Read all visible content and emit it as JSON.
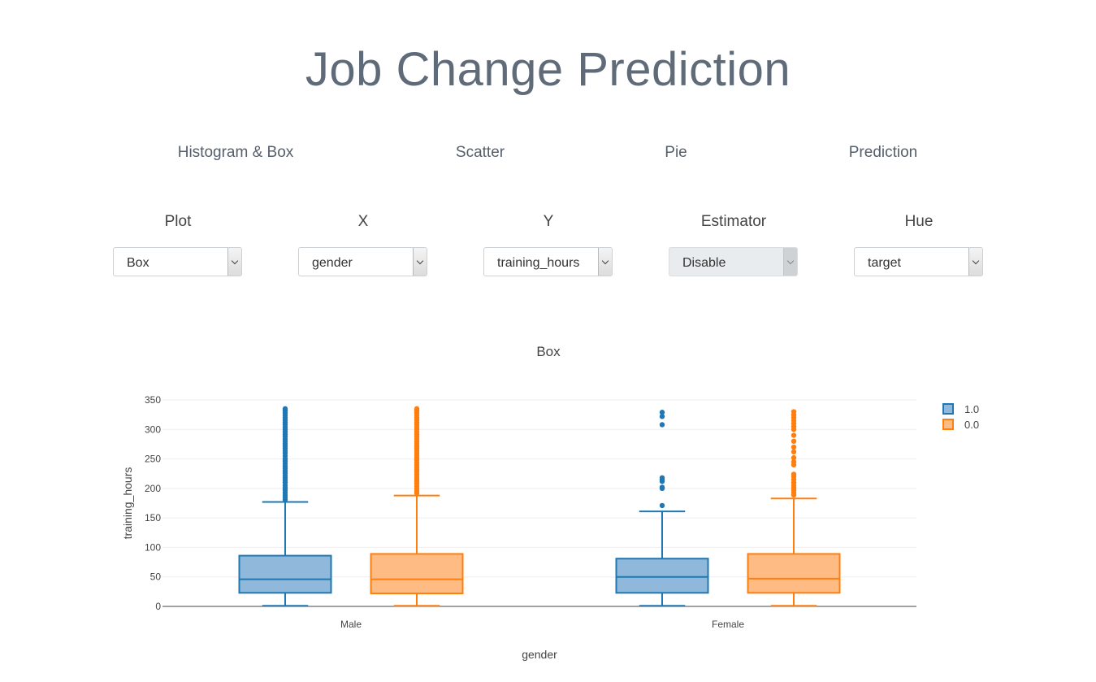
{
  "app": {
    "title": "Job Change Prediction"
  },
  "tabs": [
    {
      "label": "Histogram & Box"
    },
    {
      "label": "Scatter"
    },
    {
      "label": "Pie"
    },
    {
      "label": "Prediction"
    }
  ],
  "controls": {
    "plot": {
      "label": "Plot",
      "value": "Box"
    },
    "x": {
      "label": "X",
      "value": "gender"
    },
    "y": {
      "label": "Y",
      "value": "training_hours"
    },
    "estimator": {
      "label": "Estimator",
      "value": "Disable",
      "disabled": true
    },
    "hue": {
      "label": "Hue",
      "value": "target"
    }
  },
  "chart_data": {
    "type": "box",
    "title": "Box",
    "xlabel": "gender",
    "ylabel": "training_hours",
    "ylim": [
      0,
      350
    ],
    "yticks": [
      0,
      50,
      100,
      150,
      200,
      250,
      300,
      350
    ],
    "categories": [
      "Male",
      "Female"
    ],
    "legend": {
      "position": "top-right"
    },
    "grid": true,
    "series": [
      {
        "name": "1.0",
        "color": "#1f77b4",
        "fill": "#8fb8da",
        "boxes": [
          {
            "category": "Male",
            "min": 1,
            "q1": 23,
            "median": 46,
            "q3": 86,
            "max": 177,
            "outliers": [
              181,
              185,
              189,
              193,
              197,
              201,
              205,
              210,
              214,
              218,
              222,
              226,
              230,
              234,
              238,
              242,
              246,
              250,
              255,
              260,
              264,
              268,
              272,
              276,
              280,
              284,
              288,
              292,
              296,
              300,
              304,
              308,
              312,
              316,
              320,
              324,
              328,
              332,
              335
            ]
          },
          {
            "category": "Female",
            "min": 1,
            "q1": 23,
            "median": 50,
            "q3": 81,
            "max": 161,
            "outliers": [
              171,
              200,
              202,
              212,
              215,
              218,
              308,
              322,
              329
            ]
          }
        ]
      },
      {
        "name": "0.0",
        "color": "#ff7f0e",
        "fill": "#ffbb84",
        "boxes": [
          {
            "category": "Male",
            "min": 1,
            "q1": 22,
            "median": 46,
            "q3": 89,
            "max": 188,
            "outliers": [
              192,
              196,
              200,
              204,
              208,
              212,
              216,
              220,
              224,
              228,
              232,
              236,
              240,
              244,
              248,
              252,
              256,
              260,
              264,
              268,
              272,
              276,
              280,
              284,
              288,
              292,
              296,
              300,
              304,
              308,
              312,
              316,
              320,
              324,
              328,
              332,
              335
            ]
          },
          {
            "category": "Female",
            "min": 1,
            "q1": 23,
            "median": 47,
            "q3": 89,
            "max": 183,
            "outliers": [
              189,
              193,
              197,
              201,
              205,
              210,
              215,
              220,
              224,
              240,
              245,
              252,
              262,
              270,
              280,
              290,
              300,
              305,
              310,
              315,
              320,
              325,
              330
            ]
          }
        ]
      }
    ]
  }
}
